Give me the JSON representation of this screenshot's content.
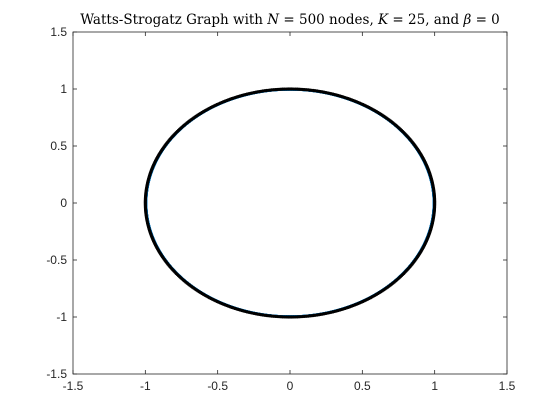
{
  "chart_data": {
    "type": "scatter",
    "title": {
      "prefix": "Watts-Strogatz Graph with ",
      "N_symbol": "N",
      "N_value": " = 500 nodes, ",
      "K_symbol": "K",
      "K_value": " = 25, and ",
      "beta_symbol": "β",
      "beta_value": " = 0"
    },
    "xlabel": "",
    "ylabel": "",
    "xlim": [
      -1.5,
      1.5
    ],
    "ylim": [
      -1.5,
      1.5
    ],
    "xticks": [
      -1.5,
      -1,
      -0.5,
      0,
      0.5,
      1,
      1.5
    ],
    "yticks": [
      -1.5,
      -1,
      -0.5,
      0,
      0.5,
      1,
      1.5
    ],
    "xtick_labels": [
      "-1.5",
      "-1",
      "-0.5",
      "0",
      "0.5",
      "1",
      "1.5"
    ],
    "ytick_labels": [
      "-1.5",
      "-1",
      "-0.5",
      "0",
      "0.5",
      "1",
      "1.5"
    ],
    "grid": false,
    "legend": "none",
    "nodes": {
      "count": 500,
      "radius": 1,
      "center": [
        0,
        0
      ],
      "layout": "circle"
    },
    "edges": {
      "neighbors_each_side": 25
    },
    "colors": {
      "node": "#000000",
      "edge": "#0072BD",
      "axes": "#262626",
      "background": "#ffffff"
    }
  }
}
